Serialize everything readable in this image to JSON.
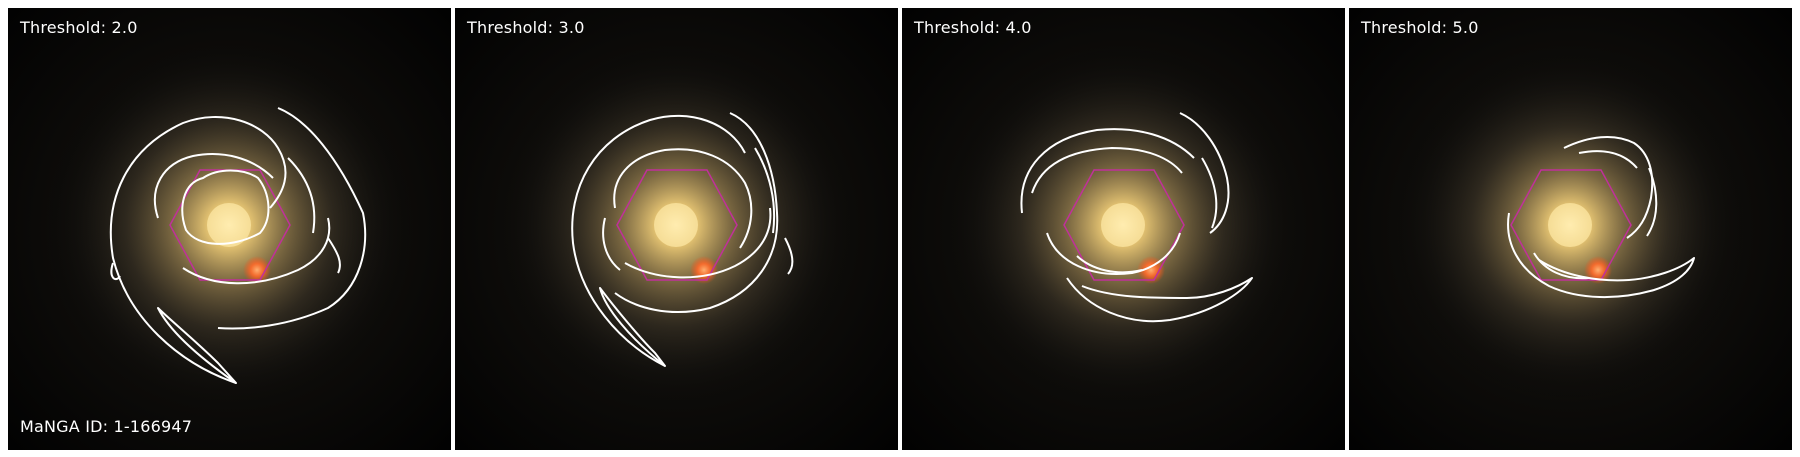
{
  "figure": {
    "manga_id_label": "MaNGA ID: 1-166947",
    "panels": [
      {
        "threshold_label": "Threshold: 2.0"
      },
      {
        "threshold_label": "Threshold: 3.0"
      },
      {
        "threshold_label": "Threshold: 4.0"
      },
      {
        "threshold_label": "Threshold: 5.0"
      }
    ],
    "colors": {
      "background": "#000000",
      "galaxy_core": "#ffe9a6",
      "galaxy_halo": "#7a6a45",
      "foreground_star": "#ff6a2a",
      "contour": "#ffffff",
      "ifu_hexagon": "#c0309a"
    },
    "icons": [
      "hexagon-ifu-footprint",
      "spiral-arm-contour"
    ]
  }
}
